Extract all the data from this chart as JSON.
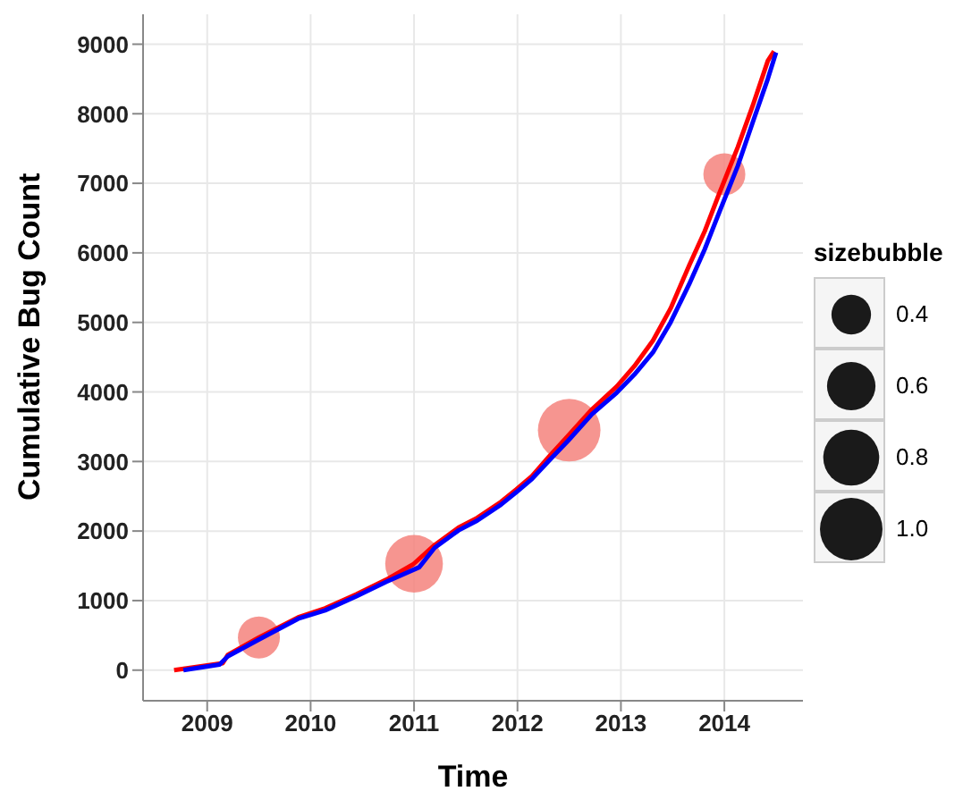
{
  "chart_data": {
    "type": "line",
    "xlabel": "Time",
    "ylabel": "Cumulative Bug Count",
    "legend_title": "sizebubble",
    "grid": true,
    "line_style": "solid",
    "xlim": [
      2008.38,
      2014.76
    ],
    "xticks": [
      2009,
      2010,
      2011,
      2012,
      2013,
      2014
    ],
    "ylim": [
      -440,
      9430
    ],
    "yticks": [
      0,
      1000,
      2000,
      3000,
      4000,
      5000,
      6000,
      7000,
      8000,
      9000
    ],
    "size_legend": [
      0.4,
      0.6,
      0.8,
      {
        "value": 1,
        "label": "1.0"
      }
    ],
    "series": [
      {
        "type": "bubble",
        "marker": "circle",
        "color": "#f4837d",
        "x": [
          2009.5,
          2011,
          2012.5,
          2014
        ],
        "values": [
          470,
          1530,
          3450,
          7130
        ],
        "sizes": [
          0.45,
          0.85,
          1,
          0.45
        ]
      },
      {
        "marker": "none",
        "color": "#ff0000",
        "x": [
          2008.68,
          2009.15,
          2009.2,
          2009.5,
          2009.88,
          2010.14,
          2010.44,
          2010.73,
          2010.99,
          2011.2,
          2011.43,
          2011.61,
          2011.84,
          2011.99,
          2012.14,
          2012.31,
          2012.49,
          2012.72,
          2012.96,
          2013.13,
          2013.31,
          2013.48,
          2013.66,
          2013.81,
          2013.95,
          2014.13,
          2014.28,
          2014.42,
          2014.48
        ],
        "values": [
          0,
          100,
          220,
          470,
          760,
          890,
          1090,
          1300,
          1520,
          1800,
          2050,
          2190,
          2420,
          2600,
          2790,
          3080,
          3370,
          3750,
          4080,
          4370,
          4740,
          5200,
          5820,
          6310,
          6850,
          7520,
          8140,
          8760,
          8900
        ]
      },
      {
        "marker": "none",
        "color": "#0000ff",
        "x": [
          2008.77,
          2009.12,
          2009.2,
          2009.5,
          2009.88,
          2010.14,
          2010.44,
          2010.73,
          2011.05,
          2011.2,
          2011.43,
          2011.61,
          2011.84,
          2011.99,
          2012.14,
          2012.31,
          2012.49,
          2012.72,
          2012.96,
          2013.13,
          2013.31,
          2013.48,
          2013.66,
          2013.81,
          2013.95,
          2014.13,
          2014.28,
          2014.42,
          2014.5
        ],
        "values": [
          0,
          80,
          200,
          440,
          740,
          860,
          1060,
          1270,
          1480,
          1760,
          2010,
          2150,
          2380,
          2560,
          2750,
          3020,
          3300,
          3680,
          3990,
          4250,
          4570,
          5000,
          5550,
          6050,
          6580,
          7250,
          7900,
          8500,
          8880
        ]
      }
    ]
  }
}
